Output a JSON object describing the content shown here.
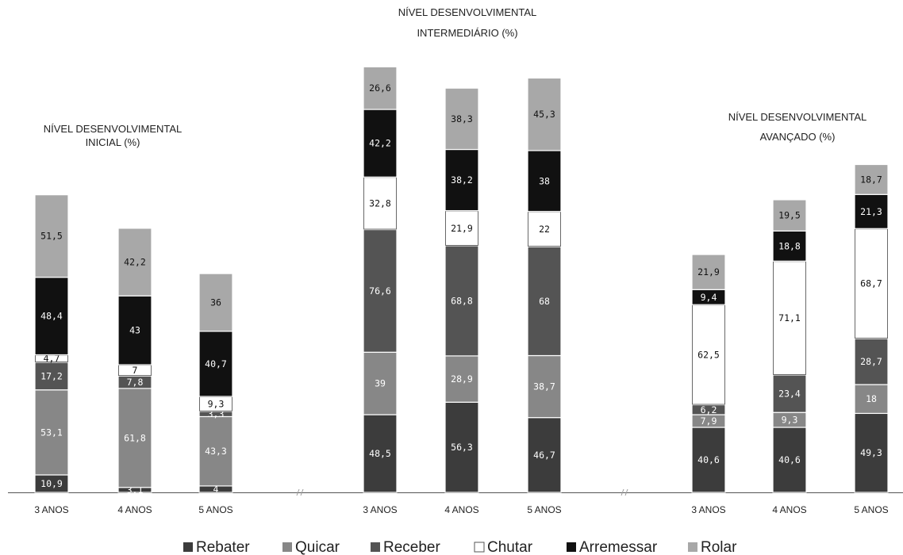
{
  "colors": {
    "Rebater": "#3c3c3c",
    "Quicar": "#878787",
    "Receber": "#545454",
    "Chutar": "#ffffff",
    "Arremessar": "#111111",
    "Rolar": "#a8a8a8"
  },
  "chart_data": {
    "type": "bar",
    "stacked": true,
    "ylim": [
      0,
      270
    ],
    "legend": [
      "Rebater",
      "Quicar",
      "Receber",
      "Chutar",
      "Arremessar",
      "Rolar"
    ],
    "legend_position": "bottom",
    "groups": [
      {
        "title": [
          "NÍVEL DESENVOLVIMENTAL",
          "INICIAL (%)"
        ],
        "bars": [
          {
            "label": "3 ANOS",
            "values": [
              10.9,
              53.1,
              17.2,
              4.7,
              48.4,
              51.5
            ]
          },
          {
            "label": "4 ANOS",
            "values": [
              3.1,
              61.8,
              7.8,
              7,
              43,
              42.2
            ]
          },
          {
            "label": "5 ANOS",
            "values": [
              4,
              43.3,
              3.3,
              9.3,
              40.7,
              36
            ]
          }
        ]
      },
      {
        "title": [
          "NÍVEL DESENVOLVIMENTAL",
          "INTERMEDIÁRIO (%)"
        ],
        "bars": [
          {
            "label": "3 ANOS",
            "values": [
              48.5,
              39,
              76.6,
              32.8,
              42.2,
              26.6
            ]
          },
          {
            "label": "4 ANOS",
            "values": [
              56.3,
              28.9,
              68.8,
              21.9,
              38.2,
              38.3
            ]
          },
          {
            "label": "5 ANOS",
            "values": [
              46.7,
              38.7,
              68,
              22,
              38,
              45.3
            ]
          }
        ]
      },
      {
        "title": [
          "NÍVEL DESENVOLVIMENTAL",
          "AVANÇADO (%)"
        ],
        "bars": [
          {
            "label": "3 ANOS",
            "values": [
              40.6,
              7.9,
              6.2,
              62.5,
              9.4,
              21.9
            ]
          },
          {
            "label": "4 ANOS",
            "values": [
              40.6,
              9.3,
              23.4,
              71.1,
              18.8,
              19.5
            ]
          },
          {
            "label": "5 ANOS",
            "values": [
              49.3,
              18,
              28.7,
              68.7,
              21.3,
              18.7
            ]
          }
        ]
      }
    ]
  }
}
